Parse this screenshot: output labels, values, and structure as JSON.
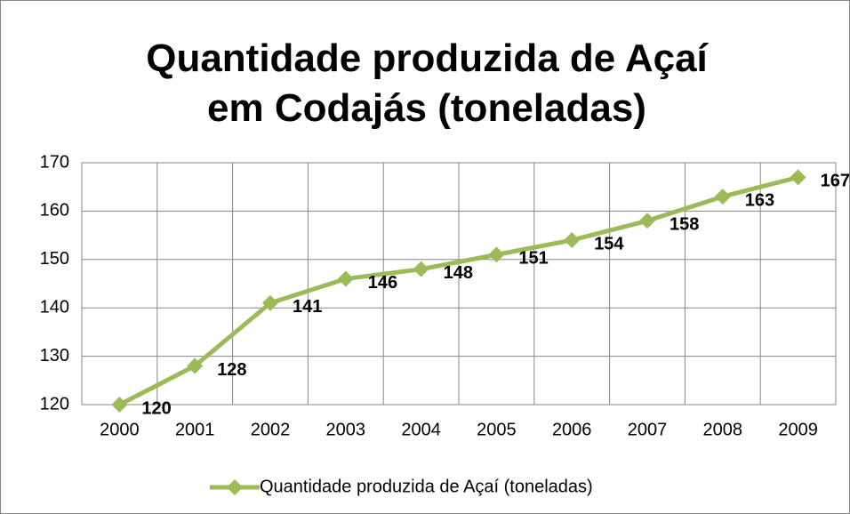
{
  "chart_data": {
    "type": "line",
    "title": "Quantidade produzida de Açaí em Codajás (toneladas)",
    "categories": [
      "2000",
      "2001",
      "2002",
      "2003",
      "2004",
      "2005",
      "2006",
      "2007",
      "2008",
      "2009"
    ],
    "series": [
      {
        "name": "Quantidade produzida de Açaí (toneladas)",
        "color": "#9bbb59",
        "values": [
          120,
          128,
          141,
          146,
          148,
          151,
          154,
          158,
          163,
          167
        ]
      }
    ],
    "ylim": [
      120,
      170
    ],
    "yticks": [
      120,
      130,
      140,
      150,
      160,
      170
    ],
    "grid": true,
    "legend": "bottom"
  }
}
